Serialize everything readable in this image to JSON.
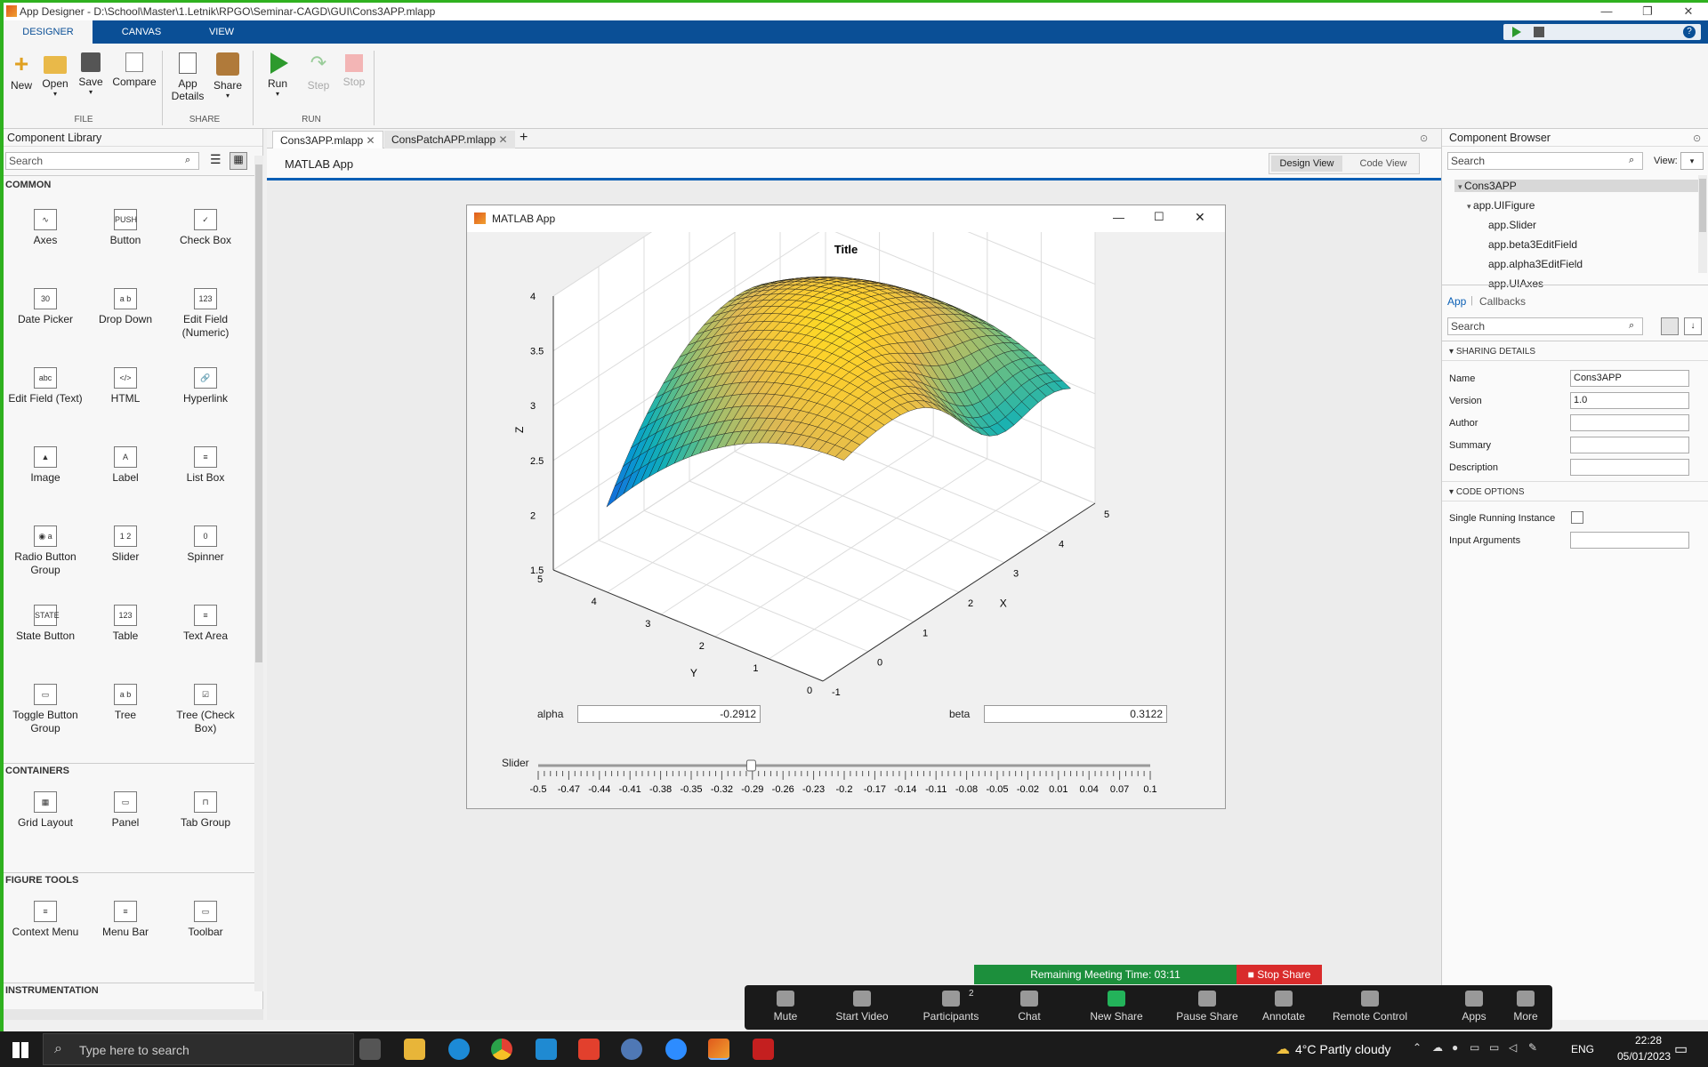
{
  "window": {
    "title": "App Designer - D:\\School\\Master\\1.Letnik\\RPGO\\Seminar-CAGD\\GUI\\Cons3APP.mlapp"
  },
  "ribbon_tabs": [
    "DESIGNER",
    "CANVAS",
    "VIEW"
  ],
  "toolbar": {
    "new": "New",
    "open": "Open",
    "save": "Save",
    "compare": "Compare",
    "app_details_1": "App",
    "app_details_2": "Details",
    "share": "Share",
    "run": "Run",
    "step": "Step",
    "stop": "Stop",
    "group_file": "FILE",
    "group_share": "SHARE",
    "group_run": "RUN"
  },
  "library": {
    "title": "Component Library",
    "search_placeholder": "Search",
    "sections": {
      "common": "COMMON",
      "containers": "CONTAINERS",
      "figure_tools": "FIGURE TOOLS",
      "instrumentation": "INSTRUMENTATION"
    },
    "common": [
      {
        "label": "Axes",
        "icon": "axes-icon",
        "glyph": "∿"
      },
      {
        "label": "Button",
        "icon": "button-icon",
        "glyph": "PUSH"
      },
      {
        "label": "Check Box",
        "icon": "checkbox-icon",
        "glyph": "✓"
      },
      {
        "label": "Date Picker",
        "icon": "date-picker-icon",
        "glyph": "30"
      },
      {
        "label": "Drop Down",
        "icon": "dropdown-icon",
        "glyph": "a b"
      },
      {
        "label": "Edit Field (Numeric)",
        "icon": "numeric-field-icon",
        "glyph": "123"
      },
      {
        "label": "Edit Field (Text)",
        "icon": "text-field-icon",
        "glyph": "abc"
      },
      {
        "label": "HTML",
        "icon": "html-icon",
        "glyph": "</>"
      },
      {
        "label": "Hyperlink",
        "icon": "hyperlink-icon",
        "glyph": "🔗"
      },
      {
        "label": "Image",
        "icon": "image-icon",
        "glyph": "▲"
      },
      {
        "label": "Label",
        "icon": "label-icon",
        "glyph": "A"
      },
      {
        "label": "List Box",
        "icon": "listbox-icon",
        "glyph": "≡"
      },
      {
        "label": "Radio Button Group",
        "icon": "radio-group-icon",
        "glyph": "◉ a"
      },
      {
        "label": "Slider",
        "icon": "slider-icon",
        "glyph": "1 2"
      },
      {
        "label": "Spinner",
        "icon": "spinner-icon",
        "glyph": "0"
      },
      {
        "label": "State Button",
        "icon": "state-button-icon",
        "glyph": "STATE"
      },
      {
        "label": "Table",
        "icon": "table-icon",
        "glyph": "123"
      },
      {
        "label": "Text Area",
        "icon": "textarea-icon",
        "glyph": "≡"
      },
      {
        "label": "Toggle Button Group",
        "icon": "toggle-group-icon",
        "glyph": "▭"
      },
      {
        "label": "Tree",
        "icon": "tree-icon",
        "glyph": "a b"
      },
      {
        "label": "Tree (Check Box)",
        "icon": "tree-checkbox-icon",
        "glyph": "☑"
      }
    ],
    "containers": [
      {
        "label": "Grid Layout",
        "icon": "grid-layout-icon",
        "glyph": "▦"
      },
      {
        "label": "Panel",
        "icon": "panel-icon",
        "glyph": "▭"
      },
      {
        "label": "Tab Group",
        "icon": "tab-group-icon",
        "glyph": "⊓"
      }
    ],
    "figure_tools": [
      {
        "label": "Context Menu",
        "icon": "context-menu-icon",
        "glyph": "≡"
      },
      {
        "label": "Menu Bar",
        "icon": "menubar-icon",
        "glyph": "≡"
      },
      {
        "label": "Toolbar",
        "icon": "toolbar-icon",
        "glyph": "▭"
      }
    ]
  },
  "doc_tabs": [
    "Cons3APP.mlapp",
    "ConsPatchAPP.mlapp"
  ],
  "doc": {
    "label": "MATLAB App",
    "design_view": "Design View",
    "code_view": "Code View"
  },
  "app": {
    "title": "MATLAB App",
    "alpha_label": "alpha",
    "alpha_value": "-0.2912",
    "beta_label": "beta",
    "beta_value": "0.3122",
    "slider_label": "Slider"
  },
  "chart_data": {
    "type": "surface",
    "title": "Title",
    "xlabel": "X",
    "ylabel": "Y",
    "zlabel": "Z",
    "xlim": [
      -1,
      5
    ],
    "ylim": [
      0,
      5
    ],
    "zlim": [
      1.5,
      4
    ],
    "x_ticks": [
      "-1",
      "0",
      "1",
      "2",
      "3",
      "4",
      "5"
    ],
    "y_ticks": [
      "0",
      "1",
      "2",
      "3",
      "4",
      "5"
    ],
    "z_ticks": [
      "1.5",
      "2",
      "2.5",
      "3",
      "3.5",
      "4"
    ],
    "colormap": "parula"
  },
  "slider": {
    "min": -0.5,
    "max": 0.1,
    "value": -0.2912,
    "labels": [
      "-0.5",
      "-0.47",
      "-0.44",
      "-0.41",
      "-0.38",
      "-0.35",
      "-0.32",
      "-0.29",
      "-0.26",
      "-0.23",
      "-0.2",
      "-0.17",
      "-0.14",
      "-0.11",
      "-0.08",
      "-0.05",
      "-0.02",
      "0.01",
      "0.04",
      "0.07",
      "0.1"
    ]
  },
  "browser": {
    "title": "Component Browser",
    "search_placeholder": "Search",
    "view_label": "View:",
    "tree": [
      "Cons3APP",
      "app.UIFigure",
      "app.Slider",
      "app.beta3EditField",
      "app.alpha3EditField",
      "app.UIAxes"
    ],
    "tab_app": "App",
    "tab_callbacks": "Callbacks",
    "sharing_details": "SHARING DETAILS",
    "code_options": "CODE OPTIONS",
    "props": {
      "name_label": "Name",
      "name_value": "Cons3APP",
      "version_label": "Version",
      "version_value": "1.0",
      "author_label": "Author",
      "summary_label": "Summary",
      "description_label": "Description",
      "single_label": "Single Running Instance",
      "input_label": "Input Arguments"
    }
  },
  "zoom": {
    "remaining": "Remaining Meeting Time: 03:11",
    "stop_share": "Stop Share",
    "participants_count": "2",
    "buttons": [
      "Mute",
      "Start Video",
      "Participants",
      "Chat",
      "New Share",
      "Pause Share",
      "Annotate",
      "Remote Control",
      "Apps",
      "More"
    ]
  },
  "taskbar": {
    "search_placeholder": "Type here to search",
    "weather": "4°C  Partly cloudy",
    "lang": "ENG",
    "time": "22:28",
    "date": "05/01/2023"
  },
  "colors": {
    "ribbon_blue": "#0a4f96",
    "zoom_green": "#1c8f3c",
    "stop_red": "#d92b2b"
  }
}
